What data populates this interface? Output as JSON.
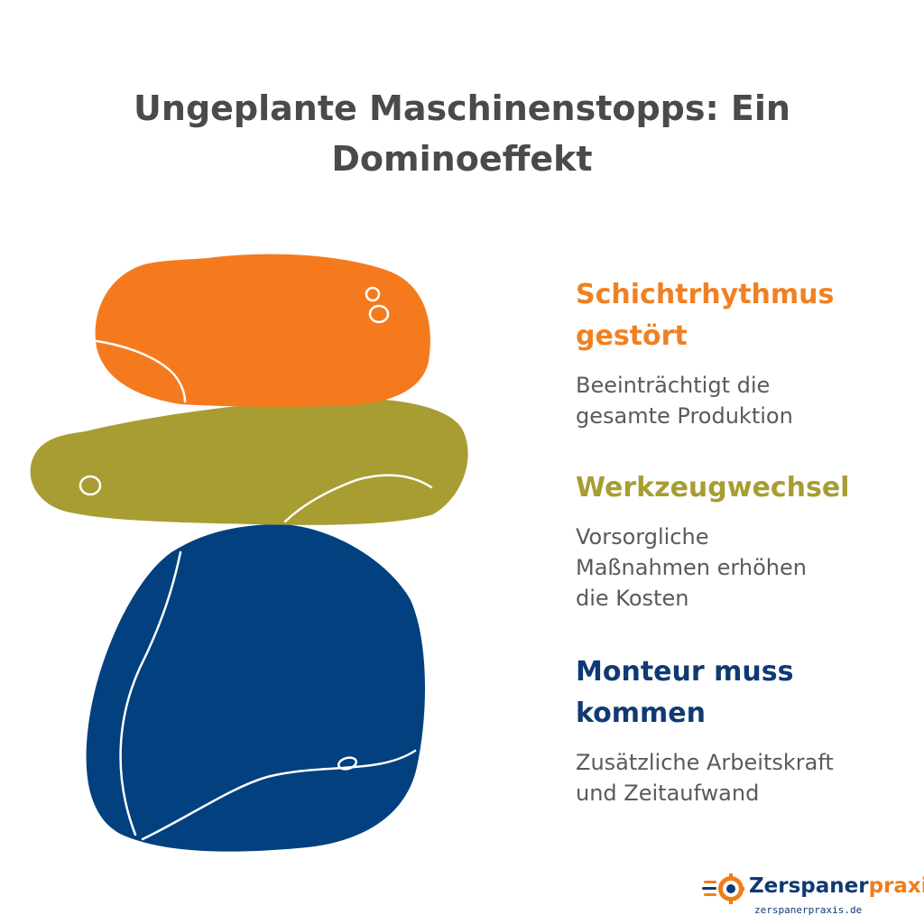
{
  "title": {
    "line1": "Ungeplante Maschinenstopps: Ein",
    "line2": "Dominoeffekt"
  },
  "colors": {
    "orange": "#f57a1e",
    "olive": "#a79d33",
    "navy": "#03407f",
    "title": "#4a4a4a",
    "body_text": "#5a5a5a"
  },
  "items": [
    {
      "heading_line1": "Schichtrhythmus",
      "heading_line2": "gestört",
      "desc_line1": "Beeinträchtigt die",
      "desc_line2": "gesamte Produktion",
      "desc_line3": ""
    },
    {
      "heading_line1": "Werkzeugwechsel",
      "heading_line2": "",
      "desc_line1": "Vorsorgliche",
      "desc_line2": "Maßnahmen erhöhen",
      "desc_line3": "die Kosten"
    },
    {
      "heading_line1": "Monteur muss",
      "heading_line2": "kommen",
      "desc_line1": "Zusätzliche Arbeitskraft",
      "desc_line2": "und Zeitaufwand",
      "desc_line3": ""
    }
  ],
  "logo": {
    "name_part1": "Zerspaner",
    "name_part2": "praxis",
    "url": "zerspanerpraxis.de",
    "icon": "gear-speed-icon"
  }
}
